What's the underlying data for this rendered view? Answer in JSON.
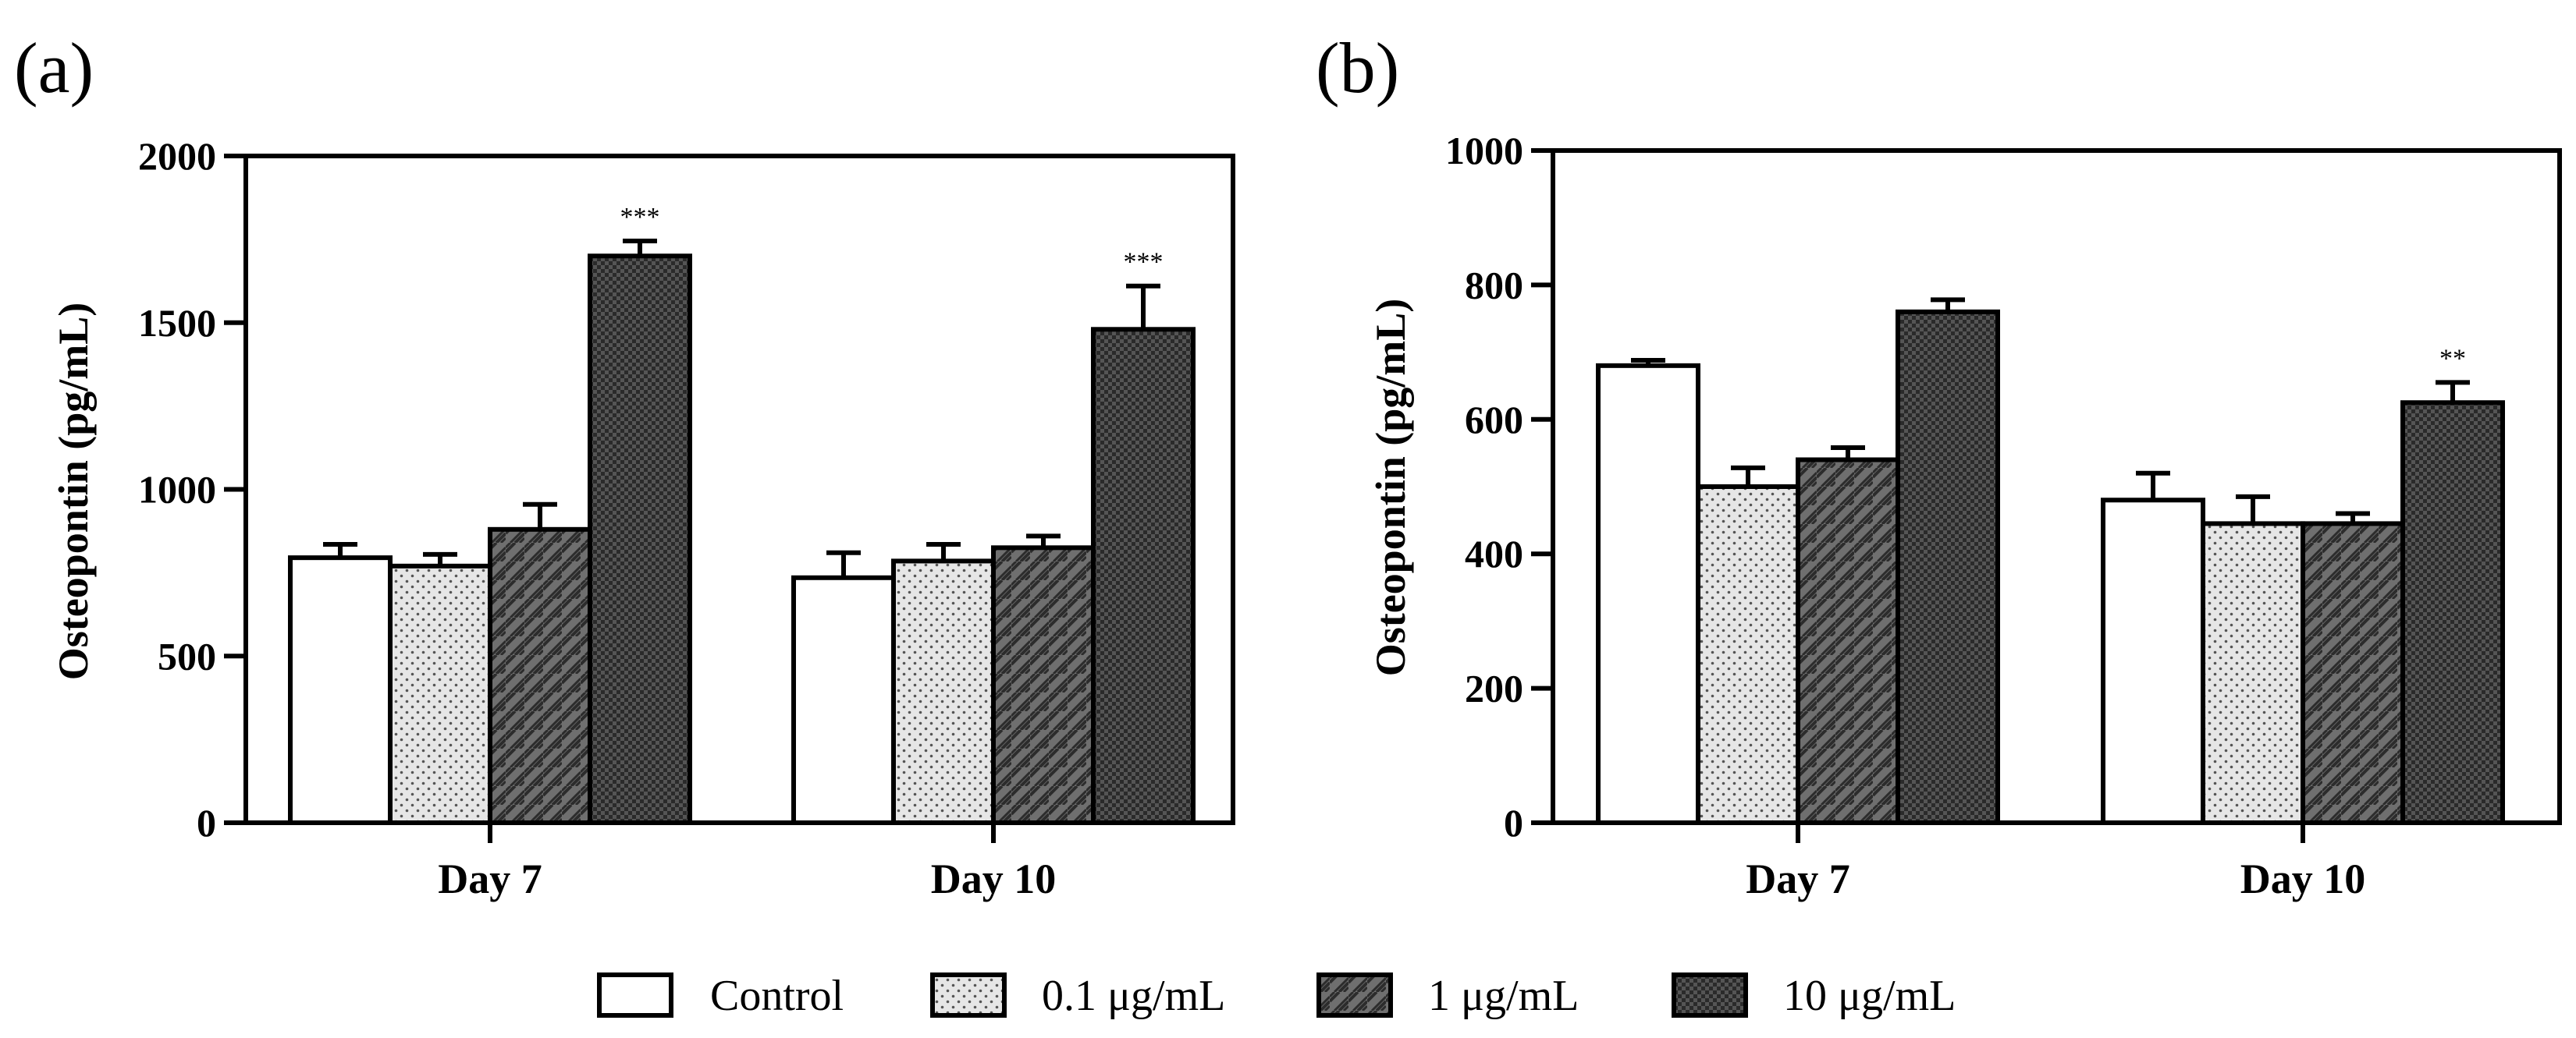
{
  "figure": {
    "panel_labels": [
      "(a)",
      "(b)"
    ]
  },
  "chart_data": [
    {
      "panel": "(a)",
      "type": "bar",
      "ylabel": "Osteopontin (pg/mL)",
      "xlabel": "",
      "ylim": [
        0,
        2000
      ],
      "yticks": [
        0,
        500,
        1000,
        1500,
        2000
      ],
      "categories": [
        "Day 7",
        "Day 10"
      ],
      "series": [
        {
          "name": "Control",
          "values": [
            795,
            735
          ],
          "errors": [
            40,
            75
          ]
        },
        {
          "name": "0.1 μg/mL",
          "values": [
            770,
            785
          ],
          "errors": [
            35,
            50
          ]
        },
        {
          "name": "1 μg/mL",
          "values": [
            880,
            825
          ],
          "errors": [
            75,
            35
          ]
        },
        {
          "name": "10 μg/mL",
          "values": [
            1700,
            1480
          ],
          "errors": [
            45,
            130
          ]
        }
      ],
      "annotations": [
        {
          "category": "Day 7",
          "series": "10 μg/mL",
          "text": "***"
        },
        {
          "category": "Day 10",
          "series": "10 μg/mL",
          "text": "***"
        }
      ]
    },
    {
      "panel": "(b)",
      "type": "bar",
      "ylabel": "Osteopontin (pg/mL)",
      "xlabel": "",
      "ylim": [
        0,
        1000
      ],
      "yticks": [
        0,
        200,
        400,
        600,
        800,
        1000
      ],
      "categories": [
        "Day 7",
        "Day 10"
      ],
      "series": [
        {
          "name": "Control",
          "values": [
            680,
            480
          ],
          "errors": [
            8,
            40
          ]
        },
        {
          "name": "0.1 μg/mL",
          "values": [
            500,
            445
          ],
          "errors": [
            28,
            40
          ]
        },
        {
          "name": "1 μg/mL",
          "values": [
            540,
            445
          ],
          "errors": [
            18,
            15
          ]
        },
        {
          "name": "10 μg/mL",
          "values": [
            760,
            625
          ],
          "errors": [
            18,
            30
          ]
        }
      ],
      "annotations": [
        {
          "category": "Day 10",
          "series": "10 μg/mL",
          "text": "**"
        }
      ]
    }
  ],
  "legend": {
    "placement": "bottom-center",
    "items": [
      {
        "label": "Control",
        "pattern": "white"
      },
      {
        "label": "0.1 μg/mL",
        "pattern": "dots"
      },
      {
        "label": "1 μg/mL",
        "pattern": "hatch"
      },
      {
        "label": "10 μg/mL",
        "pattern": "dark-checker"
      }
    ]
  },
  "colors": {
    "axis": "#000000",
    "control_fill": "#ffffff",
    "dots_bg": "#e6e6e6",
    "dots_fg": "#555555",
    "hatch_bg": "#6f6f6f",
    "hatch_fg": "#2c2c2c",
    "dark_bg": "#2a2a2a",
    "dark_fg": "#555555"
  }
}
